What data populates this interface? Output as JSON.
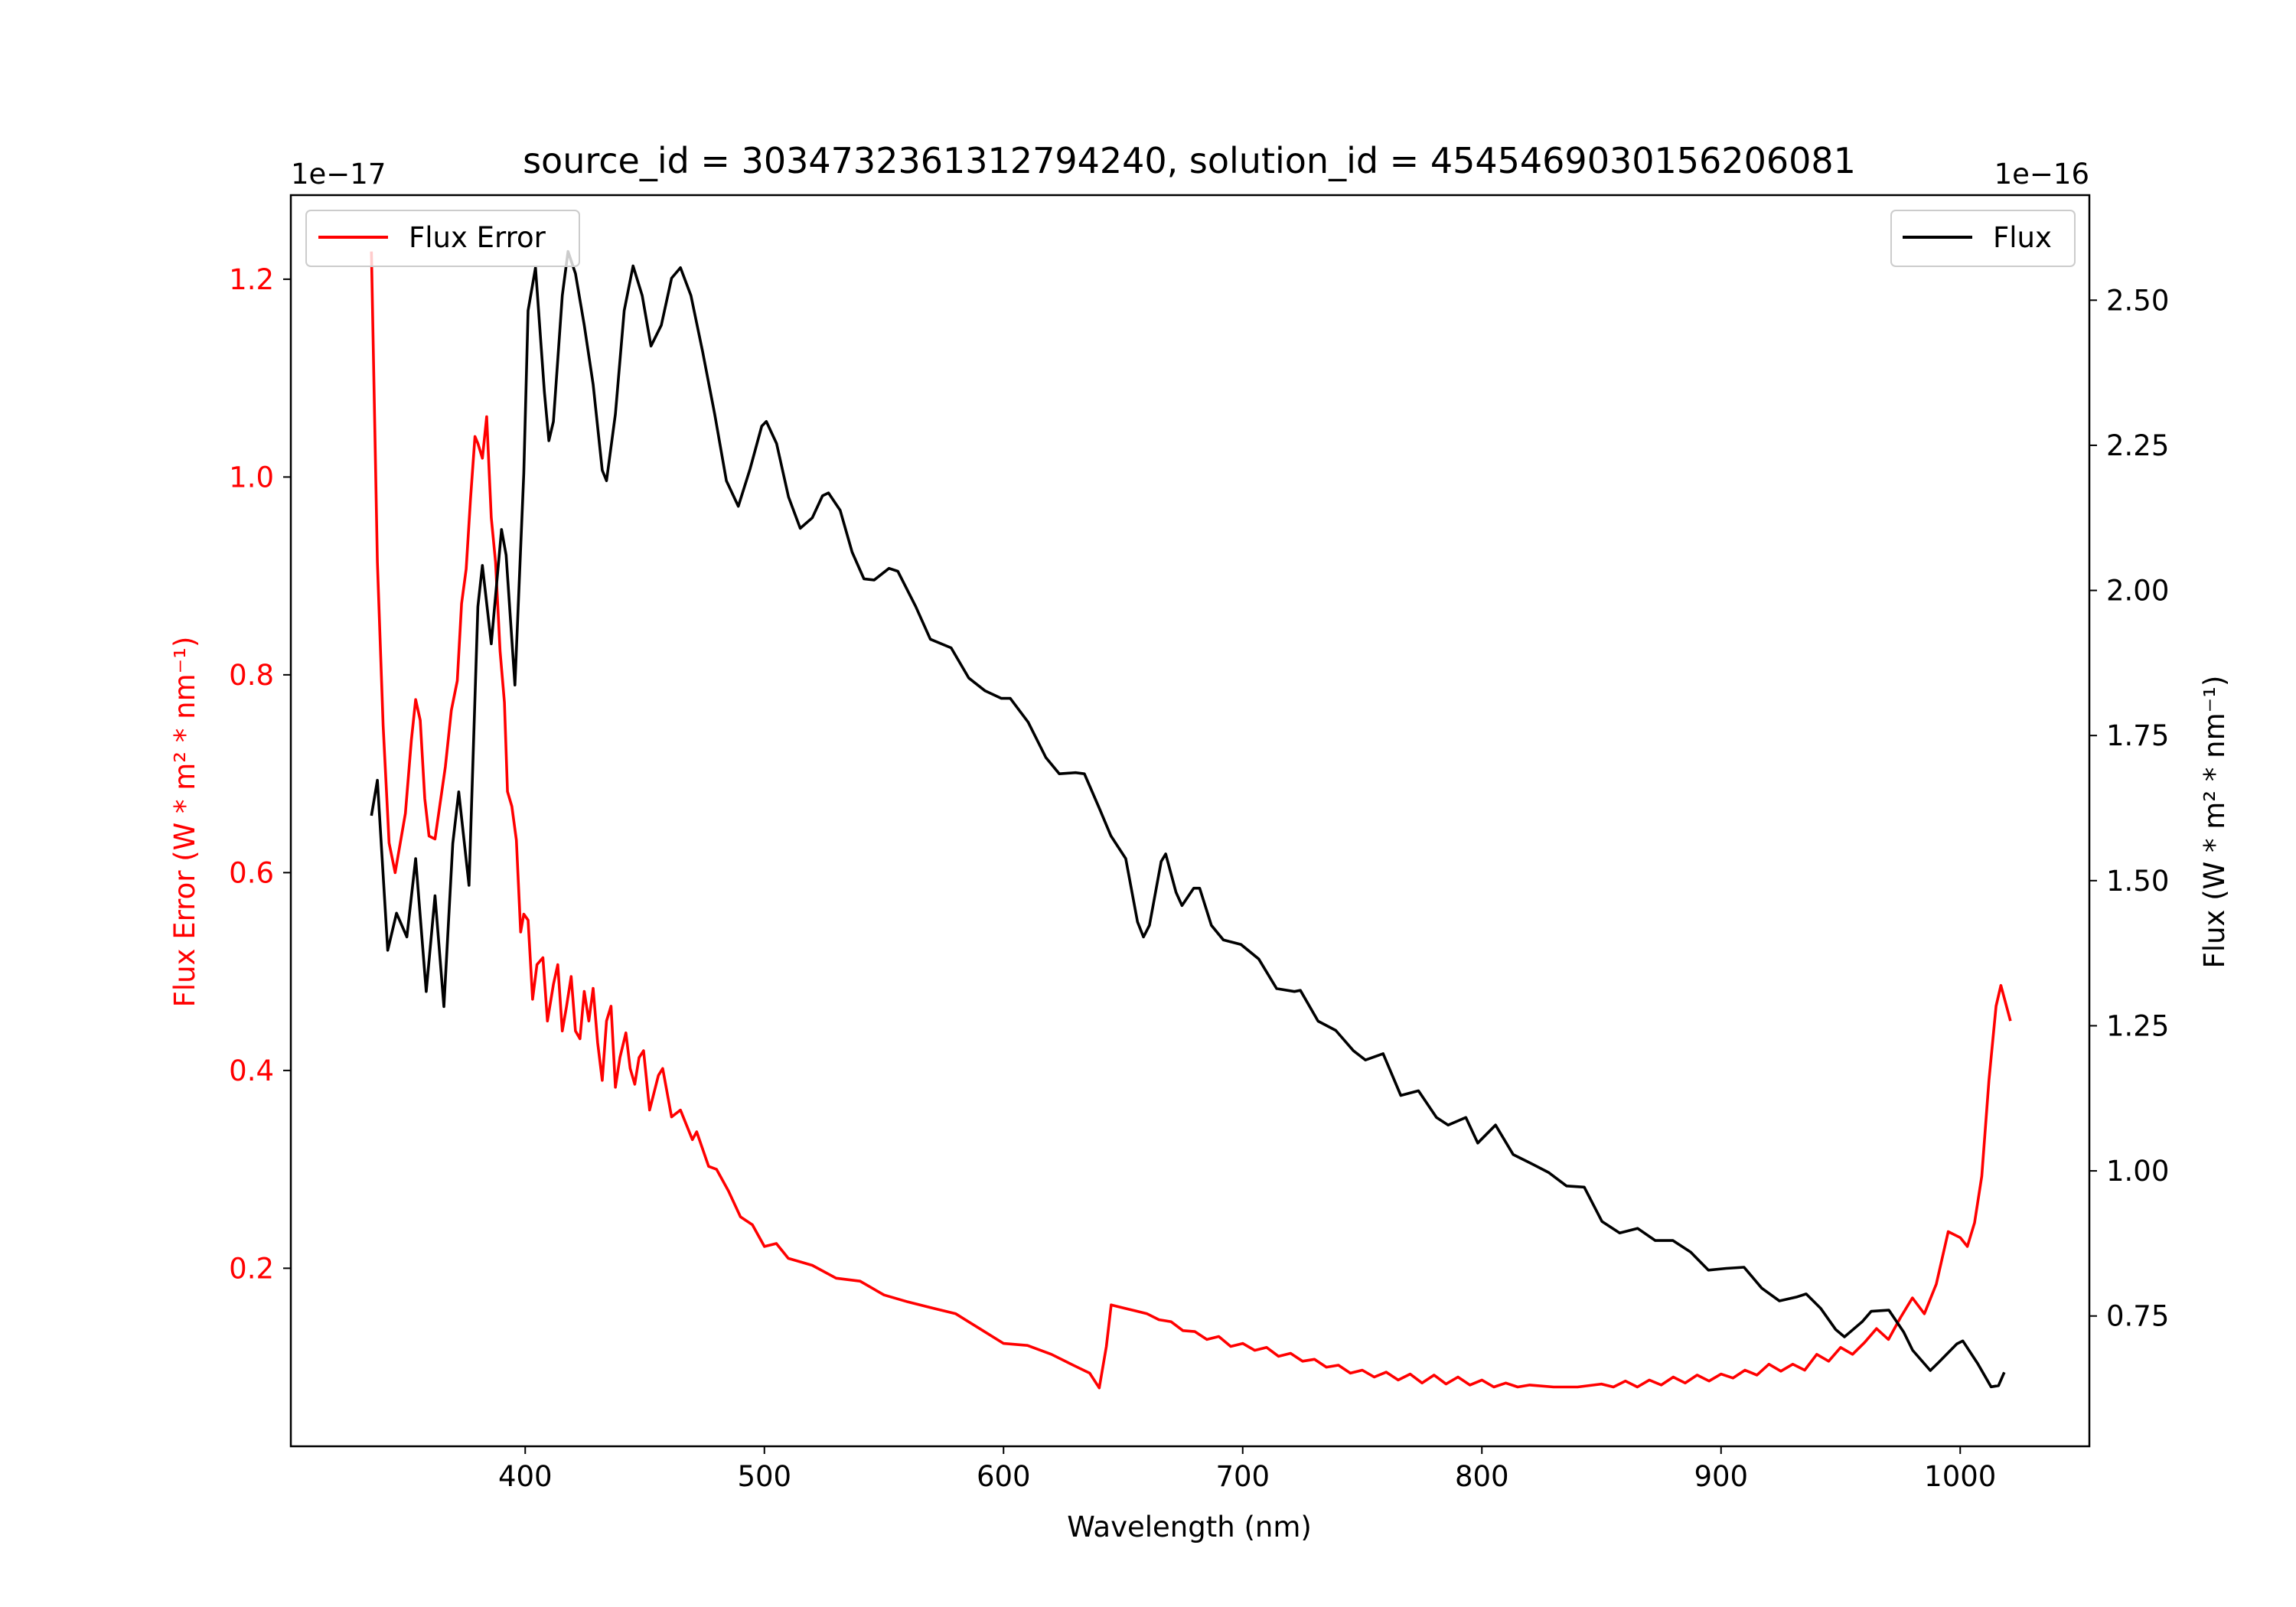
{
  "chart_data": {
    "type": "line",
    "title": "source_id = 3034732361312794240, solution_id = 4545469030156206081",
    "xlabel": "Wavelength (nm)",
    "ylabel_left": "Flux Error (W * m² * nm⁻¹)",
    "ylabel_right": "Flux (W * m² * nm⁻¹)",
    "offset_left": "1e−17",
    "offset_right": "1e−16",
    "xlim": [
      302,
      1054
    ],
    "ylim_left": [
      0.02,
      1.285
    ],
    "ylim_right": [
      0.5255,
      2.681
    ],
    "xticks": [
      400,
      500,
      600,
      700,
      800,
      900,
      1000
    ],
    "xtick_labels": [
      "400",
      "500",
      "600",
      "700",
      "800",
      "900",
      "1000"
    ],
    "yticks_left": [
      0.2,
      0.4,
      0.6,
      0.8,
      1.0,
      1.2
    ],
    "ytick_labels_left": [
      "0.2",
      "0.4",
      "0.6",
      "0.8",
      "1.0",
      "1.2"
    ],
    "yticks_right": [
      0.75,
      1.0,
      1.25,
      1.5,
      1.75,
      2.0,
      2.25,
      2.5
    ],
    "ytick_labels_right": [
      "0.75",
      "1.00",
      "1.25",
      "1.50",
      "1.75",
      "2.00",
      "2.25",
      "2.50"
    ],
    "grid": false,
    "colors": {
      "flux_error": "#ff0000",
      "flux": "#000000"
    },
    "legend_left": {
      "label": "Flux Error",
      "placement": "upper-left"
    },
    "legend_right": {
      "label": "Flux",
      "placement": "upper-right"
    },
    "series": [
      {
        "name": "Flux Error",
        "axis": "left",
        "color": "#ff0000",
        "x": [
          335.7,
          338.2,
          340.6,
          343.1,
          345.6,
          349.9,
          352.4,
          354.2,
          356.1,
          358.0,
          359.8,
          362.3,
          366.6,
          369.1,
          371.6,
          373.4,
          375.3,
          377.1,
          379.0,
          380.2,
          382.1,
          383.9,
          385.8,
          387.6,
          389.5,
          391.3,
          392.6,
          394.4,
          396.3,
          398.1,
          399.4,
          401.2,
          403.1,
          404.9,
          407.4,
          409.3,
          411.8,
          413.6,
          415.5,
          417.3,
          419.2,
          421.0,
          422.9,
          424.7,
          426.6,
          428.4,
          430.3,
          432.2,
          434.0,
          435.9,
          437.7,
          439.6,
          442.1,
          443.9,
          445.8,
          447.6,
          449.5,
          452.0,
          455.7,
          457.5,
          461.2,
          464.9,
          469.9,
          471.7,
          476.7,
          480,
          485,
          490,
          495,
          500,
          505,
          510,
          520,
          530,
          540,
          550,
          560,
          570,
          580,
          590,
          600,
          610,
          620,
          630,
          636,
          640,
          643,
          645,
          650,
          655,
          660,
          665,
          670,
          675,
          680,
          685,
          690,
          695,
          700,
          705,
          710,
          715,
          720,
          725,
          730,
          735,
          740,
          745,
          750,
          755,
          760,
          765,
          770,
          775,
          780,
          785,
          790,
          795,
          800,
          805,
          810,
          815,
          820,
          830,
          840,
          850,
          855,
          860,
          865,
          870,
          875,
          880,
          885,
          890,
          895,
          900,
          905,
          910,
          915,
          920,
          925,
          930,
          935,
          940,
          945,
          950,
          955,
          960,
          965,
          970,
          975,
          980,
          985,
          990,
          995,
          1000,
          1003,
          1006,
          1009,
          1012,
          1015,
          1017,
          1021
        ],
        "y": [
          1.228,
          0.914,
          0.749,
          0.63,
          0.6,
          0.66,
          0.734,
          0.775,
          0.754,
          0.675,
          0.637,
          0.634,
          0.707,
          0.764,
          0.794,
          0.872,
          0.907,
          0.977,
          1.041,
          1.034,
          1.019,
          1.061,
          0.959,
          0.914,
          0.824,
          0.772,
          0.682,
          0.667,
          0.633,
          0.54,
          0.558,
          0.552,
          0.472,
          0.507,
          0.514,
          0.45,
          0.487,
          0.507,
          0.44,
          0.465,
          0.495,
          0.44,
          0.432,
          0.48,
          0.45,
          0.483,
          0.428,
          0.39,
          0.45,
          0.465,
          0.383,
          0.413,
          0.438,
          0.402,
          0.386,
          0.413,
          0.42,
          0.36,
          0.395,
          0.402,
          0.353,
          0.36,
          0.33,
          0.338,
          0.303,
          0.3,
          0.278,
          0.252,
          0.244,
          0.222,
          0.225,
          0.21,
          0.203,
          0.19,
          0.187,
          0.173,
          0.166,
          0.16,
          0.154,
          0.139,
          0.124,
          0.122,
          0.113,
          0.101,
          0.094,
          0.079,
          0.121,
          0.163,
          0.16,
          0.157,
          0.154,
          0.148,
          0.146,
          0.137,
          0.136,
          0.128,
          0.131,
          0.121,
          0.124,
          0.117,
          0.12,
          0.111,
          0.114,
          0.106,
          0.108,
          0.1,
          0.102,
          0.094,
          0.097,
          0.09,
          0.095,
          0.087,
          0.093,
          0.084,
          0.092,
          0.083,
          0.09,
          0.082,
          0.087,
          0.08,
          0.084,
          0.08,
          0.082,
          0.08,
          0.08,
          0.083,
          0.08,
          0.086,
          0.08,
          0.087,
          0.082,
          0.09,
          0.084,
          0.092,
          0.086,
          0.093,
          0.089,
          0.097,
          0.092,
          0.103,
          0.096,
          0.103,
          0.097,
          0.113,
          0.106,
          0.12,
          0.113,
          0.125,
          0.139,
          0.128,
          0.15,
          0.17,
          0.154,
          0.184,
          0.237,
          0.231,
          0.222,
          0.246,
          0.293,
          0.39,
          0.465,
          0.486,
          0.45
        ]
      },
      {
        "name": "Flux",
        "axis": "right",
        "color": "#000000",
        "x": [
          335.7,
          338.2,
          342.5,
          346.2,
          350.5,
          354.2,
          358.6,
          362.3,
          366.0,
          369.7,
          372.2,
          376.5,
          380.2,
          382.1,
          385.8,
          390.1,
          392.0,
          395.7,
          399.4,
          401.2,
          404.3,
          408.0,
          409.9,
          411.8,
          415.5,
          417.9,
          421.0,
          424.7,
          428.4,
          432.2,
          434.0,
          437.7,
          441.4,
          445.1,
          448.9,
          452.6,
          456.9,
          461.2,
          464.9,
          469.3,
          474.2,
          479.2,
          484.1,
          489.1,
          494.0,
          498.9,
          500.8,
          505.1,
          510.1,
          515.0,
          520.0,
          524.3,
          526.8,
          531.7,
          536.7,
          541.6,
          545.9,
          552.1,
          555.8,
          563.3,
          569.4,
          578.1,
          585.5,
          592.3,
          599.1,
          602.8,
          610.3,
          617.7,
          623.3,
          630.1,
          633.8,
          640.0,
          644.9,
          651.1,
          656.0,
          658.5,
          661.0,
          665.9,
          667.8,
          672.1,
          674.6,
          679.5,
          682.0,
          686.9,
          691.9,
          699.3,
          706.7,
          714.2,
          721.6,
          724.1,
          731.5,
          738.9,
          746.3,
          751.3,
          758.7,
          766.1,
          773.5,
          781.0,
          785.9,
          793.3,
          798.3,
          805.7,
          813.1,
          820.5,
          828.0,
          835.4,
          842.8,
          850.2,
          857.6,
          865.1,
          872.5,
          879.9,
          887.3,
          894.7,
          902.2,
          909.6,
          917.0,
          924.4,
          931.8,
          935.6,
          941.7,
          947.9,
          951.6,
          959.0,
          962.8,
          970.2,
          976.4,
          980.1,
          987.5,
          991.2,
          998.6,
          1001.1,
          1007.3,
          1012.9,
          1016.0,
          1018.4
        ],
        "y": [
          1.612,
          1.673,
          1.38,
          1.444,
          1.403,
          1.538,
          1.309,
          1.474,
          1.283,
          1.564,
          1.653,
          1.492,
          1.972,
          2.043,
          1.908,
          2.105,
          2.061,
          1.837,
          2.202,
          2.482,
          2.556,
          2.342,
          2.258,
          2.291,
          2.508,
          2.584,
          2.546,
          2.457,
          2.355,
          2.207,
          2.189,
          2.304,
          2.482,
          2.559,
          2.508,
          2.421,
          2.457,
          2.538,
          2.556,
          2.508,
          2.411,
          2.304,
          2.189,
          2.145,
          2.209,
          2.283,
          2.291,
          2.253,
          2.161,
          2.107,
          2.125,
          2.163,
          2.168,
          2.138,
          2.066,
          2.02,
          2.018,
          2.038,
          2.033,
          1.972,
          1.916,
          1.901,
          1.849,
          1.827,
          1.814,
          1.814,
          1.773,
          1.712,
          1.684,
          1.686,
          1.684,
          1.625,
          1.577,
          1.538,
          1.429,
          1.403,
          1.423,
          1.533,
          1.546,
          1.48,
          1.457,
          1.487,
          1.487,
          1.423,
          1.398,
          1.39,
          1.365,
          1.314,
          1.309,
          1.311,
          1.258,
          1.242,
          1.207,
          1.191,
          1.202,
          1.13,
          1.138,
          1.092,
          1.079,
          1.092,
          1.048,
          1.079,
          1.028,
          1.013,
          0.997,
          0.974,
          0.972,
          0.913,
          0.893,
          0.901,
          0.88,
          0.88,
          0.86,
          0.829,
          0.832,
          0.834,
          0.798,
          0.776,
          0.783,
          0.788,
          0.763,
          0.727,
          0.714,
          0.74,
          0.758,
          0.76,
          0.722,
          0.691,
          0.656,
          0.671,
          0.702,
          0.707,
          0.668,
          0.628,
          0.63,
          0.653
        ]
      }
    ]
  }
}
